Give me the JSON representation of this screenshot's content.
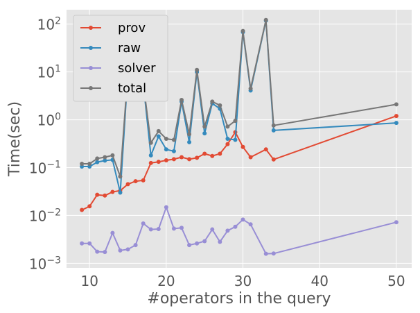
{
  "chart_data": {
    "type": "line",
    "xlabel": "#operators in the query",
    "ylabel": "Time(sec)",
    "xlim": [
      7,
      52
    ],
    "ylim": [
      0.0008,
      200
    ],
    "y_scale": "log",
    "grid": true,
    "legend_placement": "top-left",
    "x_ticks": [
      10,
      20,
      30,
      40,
      50
    ],
    "x_tick_labels": [
      "10",
      "20",
      "30",
      "40",
      "50"
    ],
    "y_ticks": [
      0.001,
      0.01,
      0.1,
      1,
      10,
      100
    ],
    "y_tick_labels": [
      {
        "base": "10",
        "exp": "−3"
      },
      {
        "base": "10",
        "exp": "−2"
      },
      {
        "base": "10",
        "exp": "−1"
      },
      {
        "base": "10",
        "exp": "0"
      },
      {
        "base": "10",
        "exp": "1"
      },
      {
        "base": "10",
        "exp": "2"
      }
    ],
    "series": [
      {
        "name": "prov",
        "color": "#e24a33",
        "x": [
          9,
          10,
          11,
          12,
          13,
          14,
          15,
          16,
          17,
          18,
          19,
          20,
          21,
          22,
          23,
          24,
          25,
          26,
          27,
          28,
          29,
          30,
          31,
          33,
          34,
          50
        ],
        "y": [
          0.013,
          0.0155,
          0.027,
          0.026,
          0.031,
          0.033,
          0.045,
          0.052,
          0.054,
          0.125,
          0.132,
          0.142,
          0.15,
          0.165,
          0.15,
          0.16,
          0.195,
          0.175,
          0.195,
          0.31,
          0.55,
          0.27,
          0.165,
          0.24,
          0.148,
          1.2
        ]
      },
      {
        "name": "raw",
        "color": "#348abd",
        "x": [
          9,
          10,
          11,
          12,
          13,
          14,
          15,
          16,
          17,
          18,
          19,
          20,
          21,
          22,
          23,
          24,
          25,
          26,
          27,
          28,
          29,
          30,
          31,
          33,
          34,
          50
        ],
        "y": [
          0.105,
          0.105,
          0.13,
          0.14,
          0.145,
          0.03,
          9.5,
          7.0,
          5.8,
          0.18,
          0.45,
          0.24,
          0.22,
          2.4,
          0.34,
          10.0,
          0.52,
          2.2,
          1.7,
          0.4,
          0.38,
          68,
          4.1,
          118,
          0.6,
          0.86
        ]
      },
      {
        "name": "solver",
        "color": "#988ed5",
        "x": [
          9,
          10,
          11,
          12,
          13,
          14,
          15,
          16,
          17,
          18,
          19,
          20,
          21,
          22,
          23,
          24,
          25,
          26,
          27,
          28,
          29,
          30,
          31,
          33,
          34,
          50
        ],
        "y": [
          0.0026,
          0.0026,
          0.00175,
          0.00172,
          0.0043,
          0.00185,
          0.00195,
          0.0024,
          0.0068,
          0.0051,
          0.0052,
          0.0148,
          0.0053,
          0.0055,
          0.0024,
          0.0026,
          0.0029,
          0.0051,
          0.0028,
          0.0048,
          0.0058,
          0.0082,
          0.0065,
          0.00158,
          0.0016,
          0.0072
        ]
      },
      {
        "name": "total",
        "color": "#777777",
        "x": [
          9,
          10,
          11,
          12,
          13,
          14,
          15,
          16,
          17,
          18,
          19,
          20,
          21,
          22,
          23,
          24,
          25,
          26,
          27,
          28,
          29,
          30,
          31,
          33,
          34,
          50
        ],
        "y": [
          0.12,
          0.12,
          0.155,
          0.165,
          0.18,
          0.065,
          9.6,
          7.2,
          5.8,
          0.33,
          0.58,
          0.4,
          0.38,
          2.6,
          0.5,
          11.0,
          0.72,
          2.4,
          2.0,
          0.72,
          0.95,
          72,
          4.5,
          122,
          0.76,
          2.1
        ]
      }
    ]
  }
}
